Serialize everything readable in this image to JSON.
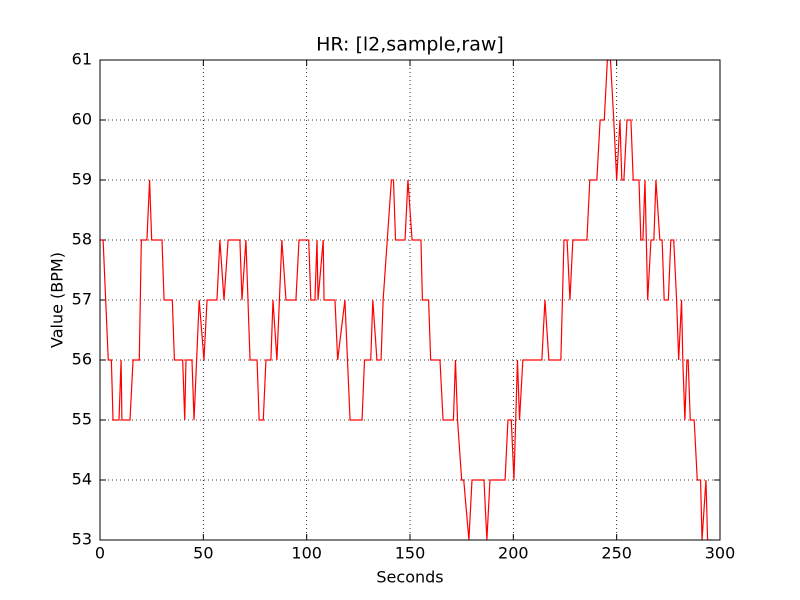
{
  "chart_data": {
    "type": "line",
    "title": "HR: [l2,sample,raw]",
    "x_label": "Seconds",
    "y_label": "Value (BPM)",
    "color": "#ff0000",
    "grid": true,
    "x": [
      0,
      1.5,
      4,
      5.5,
      6.3,
      9.2,
      10.2,
      10.6,
      14.5,
      16,
      19,
      20,
      22.7,
      24,
      25,
      30,
      31,
      35,
      36,
      40,
      41,
      41.6,
      44.5,
      45.5,
      48,
      50.3,
      51.8,
      56.6,
      58,
      60,
      62,
      67.7,
      68.7,
      70.6,
      72.6,
      76,
      77,
      79,
      80.3,
      82.7,
      83.7,
      85.6,
      88,
      90,
      94.8,
      96.3,
      101,
      102,
      104,
      105,
      105.5,
      108,
      108.4,
      113.7,
      115,
      118.5,
      121,
      126.8,
      128,
      131,
      132,
      134,
      136,
      137,
      141,
      142,
      143,
      147.6,
      149,
      151,
      155.3,
      156,
      159,
      160,
      164.5,
      166,
      171,
      172,
      173,
      175,
      176,
      178.5,
      180,
      185.8,
      187.2,
      188.7,
      196,
      197.4,
      199,
      200.3,
      202,
      203,
      204.6,
      213.8,
      215.3,
      217.2,
      223,
      224.5,
      226,
      227.4,
      228.8,
      235.6,
      237,
      240.4,
      242,
      244,
      245.5,
      247,
      248.6,
      250,
      251.6,
      252.5,
      253.5,
      255,
      256.9,
      258,
      260.8,
      261.7,
      262.7,
      263.7,
      265,
      266.6,
      268,
      269,
      270.9,
      272,
      273,
      275,
      276.2,
      277.6,
      279,
      280,
      281.4,
      282,
      283,
      284,
      284.6,
      285.6,
      287.5,
      289,
      290.6,
      291.3,
      293.2,
      294,
      295.6
    ],
    "values": [
      58,
      58,
      56,
      56,
      55,
      55,
      56,
      55,
      55,
      56,
      56,
      58,
      58,
      59,
      58,
      58,
      57,
      57,
      56,
      56,
      55,
      56,
      56,
      55,
      57,
      56,
      57,
      57,
      58,
      57,
      58,
      58,
      57,
      58,
      56,
      56,
      55,
      55,
      56,
      56,
      57,
      56,
      58,
      57,
      57,
      58,
      58,
      57,
      57,
      58,
      57,
      58,
      57,
      57,
      56,
      57,
      55,
      55,
      56,
      56,
      57,
      56,
      56,
      57,
      59,
      59,
      58,
      58,
      59,
      58,
      58,
      57,
      57,
      56,
      56,
      55,
      55,
      56,
      55,
      54,
      54,
      53,
      54,
      54,
      53,
      54,
      54,
      55,
      55,
      54,
      56,
      55,
      56,
      56,
      57,
      56,
      56,
      58,
      58,
      57,
      58,
      58,
      59,
      59,
      60,
      60,
      61,
      61,
      60,
      59,
      60,
      59,
      59,
      60,
      60,
      59,
      59,
      58,
      58,
      59,
      57,
      58,
      58,
      59,
      58,
      58,
      57,
      57,
      58,
      58,
      57,
      56,
      57,
      56,
      55,
      56,
      56,
      55,
      55,
      54,
      54,
      53,
      54,
      53,
      53
    ],
    "xlim": [
      0,
      300
    ],
    "xticks": [
      0,
      50,
      100,
      150,
      200,
      250,
      300
    ],
    "ylim": [
      53,
      61
    ],
    "yticks": [
      53,
      54,
      55,
      56,
      57,
      58,
      59,
      60,
      61
    ]
  }
}
